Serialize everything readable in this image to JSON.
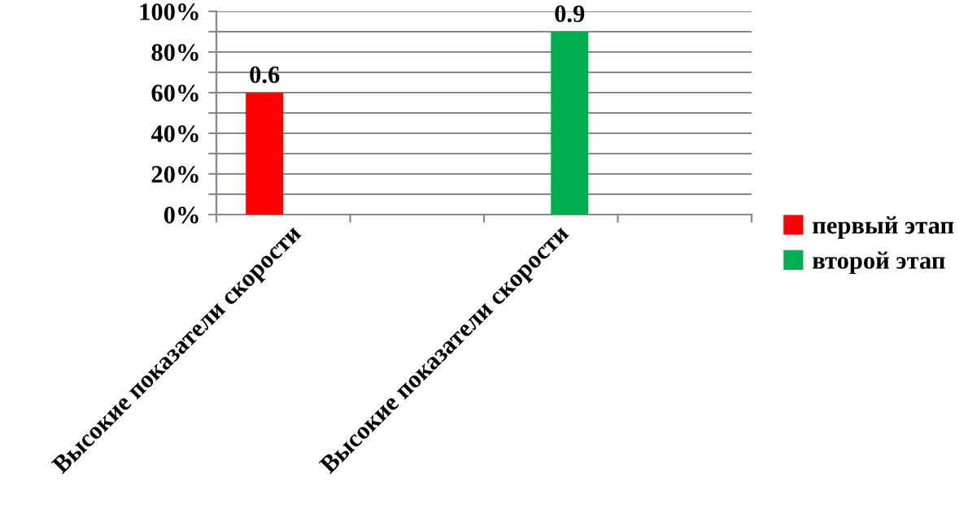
{
  "chart_data": {
    "type": "bar",
    "categories": [
      "Высокие показатели скорости",
      null,
      "Высокие показатели скорости",
      null
    ],
    "series": [
      {
        "name": "первый этап",
        "color": "#ff0000",
        "values": [
          0.6,
          null,
          null,
          null
        ]
      },
      {
        "name": "второй этап",
        "color": "#00b050",
        "values": [
          null,
          null,
          0.9,
          null
        ]
      }
    ],
    "ylim": [
      0,
      1
    ],
    "yticks": [
      {
        "value": 0,
        "label": "0%"
      },
      {
        "value": 0.1,
        "label": null
      },
      {
        "value": 0.2,
        "label": "20%"
      },
      {
        "value": 0.3,
        "label": null
      },
      {
        "value": 0.4,
        "label": "40%"
      },
      {
        "value": 0.5,
        "label": null
      },
      {
        "value": 0.6,
        "label": "60%"
      },
      {
        "value": 0.7,
        "label": null
      },
      {
        "value": 0.8,
        "label": "80%"
      },
      {
        "value": 0.9,
        "label": null
      },
      {
        "value": 1,
        "label": "100%"
      }
    ],
    "grid": "y",
    "data_labels": true,
    "legend": "right"
  }
}
